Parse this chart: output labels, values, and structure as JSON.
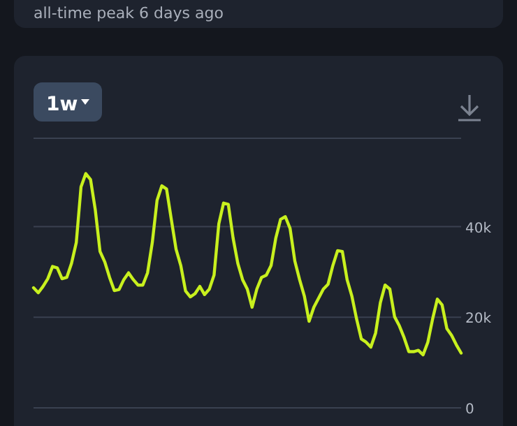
{
  "chart_data": {
    "type": "line",
    "annotations": [
      "all-time peak 6 days ago",
      "1w"
    ],
    "categories": [
      null,
      null,
      null,
      null,
      null,
      null,
      null,
      null,
      null,
      null,
      null,
      null,
      null,
      null,
      null,
      null,
      null,
      null,
      null,
      null,
      null,
      null,
      null,
      null,
      null,
      null,
      null,
      null,
      null,
      null,
      null,
      null,
      null,
      null,
      null,
      null,
      null,
      null,
      null,
      null,
      null,
      null,
      null,
      null,
      null,
      null,
      null,
      null,
      null,
      null,
      null,
      null,
      null,
      null,
      null,
      null,
      null,
      null,
      null,
      null,
      null,
      null,
      null,
      null,
      null,
      null,
      null,
      null,
      null,
      null,
      null,
      null,
      null,
      null,
      null,
      null,
      null,
      null,
      null,
      null,
      null,
      null,
      null,
      null,
      null,
      null,
      null,
      null,
      null,
      null,
      null
    ],
    "series": [
      {
        "color": "#c8f01e",
        "values": [
          26500,
          25400,
          26800,
          28500,
          31200,
          30900,
          28500,
          28800,
          31900,
          36500,
          48800,
          51700,
          50400,
          43700,
          34500,
          32200,
          28800,
          25900,
          26100,
          28300,
          29800,
          28300,
          27100,
          27100,
          29800,
          36500,
          45800,
          49000,
          48300,
          41600,
          35000,
          31400,
          25800,
          24500,
          25200,
          26800,
          25000,
          26200,
          29300,
          40600,
          45200,
          44900,
          37500,
          31900,
          28300,
          26200,
          22200,
          26200,
          28800,
          29300,
          31400,
          37500,
          41600,
          42200,
          39600,
          32400,
          28300,
          24700,
          19100,
          22200,
          24200,
          26200,
          27300,
          31400,
          34700,
          34500,
          28300,
          24700,
          19600,
          15200,
          14500,
          13400,
          16500,
          23200,
          27100,
          26200,
          20100,
          18100,
          15500,
          12400,
          12400,
          12700,
          11700,
          14500,
          19600,
          24000,
          22700,
          17500,
          16000,
          13900,
          12100
        ]
      }
    ],
    "ylim": [
      0,
      59500
    ],
    "yticks": [
      {
        "value": 0,
        "label": "0"
      },
      {
        "value": 20000,
        "label": "20k"
      },
      {
        "value": 40000,
        "label": "40k"
      }
    ],
    "grid": "y",
    "tick_labels": "y",
    "marker": "none",
    "line_style": "solid"
  }
}
